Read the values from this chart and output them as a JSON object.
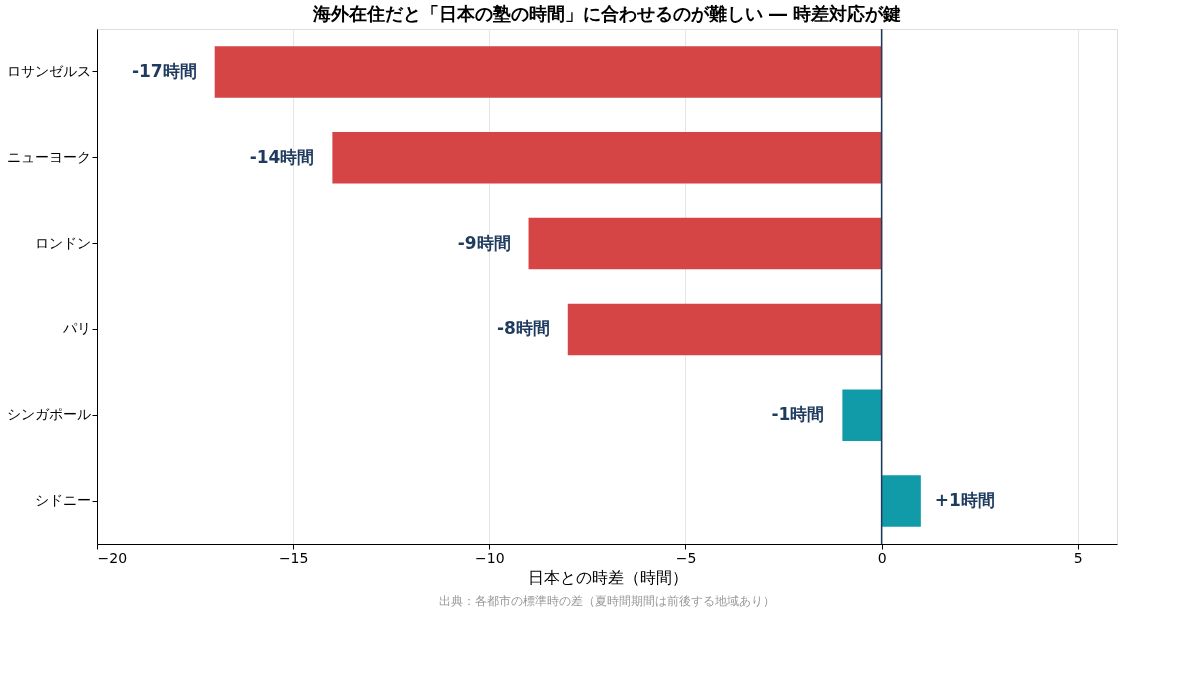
{
  "chart_data": {
    "type": "bar",
    "orientation": "horizontal",
    "title": "海外在住だと「日本の塾の時間」に合わせるのが難しい ― 時差対応が鍵",
    "categories": [
      "ロサンゼルス",
      "ニューヨーク",
      "ロンドン",
      "パリ",
      "シンガポール",
      "シドニー"
    ],
    "values": [
      -17,
      -14,
      -9,
      -8,
      -1,
      1
    ],
    "colors": [
      "#d64545",
      "#d64545",
      "#d64545",
      "#d64545",
      "#119aa8",
      "#119aa8"
    ],
    "value_labels": [
      "-17時間",
      "-14時間",
      "-9時間",
      "-8時間",
      "-1時間",
      "+1時間"
    ],
    "xlabel": "日本との時差（時間）",
    "xlim": [
      -20,
      6
    ],
    "xticks": [
      -20,
      -15,
      -10,
      -5,
      0,
      5
    ],
    "grid": "x",
    "ref_lines": [
      {
        "axis": "x",
        "value": 0,
        "color": "#1f3a5f"
      }
    ],
    "annotations": [
      "出典：各都市の標準時の差（夏時間期間は前後する地域あり）"
    ]
  }
}
